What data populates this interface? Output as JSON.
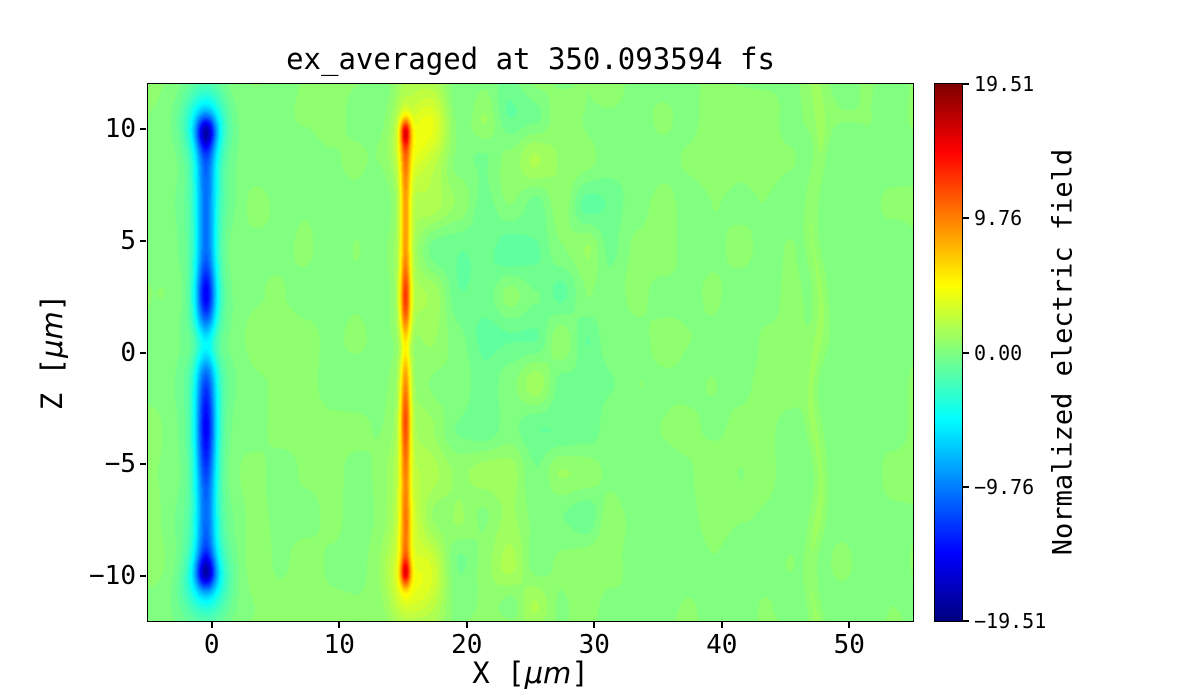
{
  "chart_data": {
    "type": "heatmap",
    "title": "ex_averaged at 350.093594 fs",
    "xlabel_parts": {
      "pre": "X [",
      "unit": "μm",
      "post": "]"
    },
    "ylabel_parts": {
      "pre": "Z [",
      "unit": "μm",
      "post": "]"
    },
    "xlim": [
      -5,
      55
    ],
    "ylim": [
      -12,
      12
    ],
    "xticks": [
      0,
      10,
      20,
      30,
      40,
      50
    ],
    "yticks": [
      -10,
      -5,
      0,
      5,
      10
    ],
    "colorbar": {
      "label": "Normalized electric field",
      "colormap": "jet",
      "vmin": -19.51,
      "vmax": 19.51,
      "ticks": [
        {
          "v": 19.51,
          "label": "19.51"
        },
        {
          "v": 9.76,
          "label": "9.76"
        },
        {
          "v": 0,
          "label": "0.00"
        },
        {
          "v": -9.76,
          "label": "−9.76"
        },
        {
          "v": -19.51,
          "label": "−19.51"
        }
      ]
    },
    "description": "2D field map: near-zero (green) background; a negative (cyan/blue) vertical sheet at x≈0 μm spanning z≈−10…10 μm with dark-blue lobes at z≈±10, ≈2.5 and ≈−3.5; a thin positive (yellow/orange) sheet at x≈15 μm spanning z≈−10…10 μm with red hot spots at z≈±10; mottled weak fluctuations for x≈15–33 μm and a faint vertical seam near x≈47 μm.",
    "field": {
      "background": 0.25,
      "levels": 64,
      "texture": {
        "global": 0.55,
        "region": {
          "x0": 13,
          "x1": 34,
          "amp": 2.0
        }
      },
      "band": {
        "x": 47.4,
        "amp": 0.9
      },
      "stripes": [
        {
          "xc": -0.45,
          "sx": 0.8,
          "amp": -8.5,
          "zmin": -10.4,
          "zmax": 10.4,
          "edge": 0.35,
          "bumps": [
            {
              "z": 10.0,
              "sz": 0.8,
              "amp": -7.0
            },
            {
              "z": -10.0,
              "sz": 0.8,
              "amp": -7.0
            },
            {
              "z": 2.6,
              "sz": 1.2,
              "amp": -4.5
            },
            {
              "z": -3.4,
              "sz": 2.0,
              "amp": -4.5
            }
          ],
          "gap": {
            "z": 0.3,
            "sz": 1.0,
            "factor": 0.5
          },
          "halo": {
            "sxl": 1.8,
            "sxr": 1.8,
            "amp": -2.2,
            "tip": 0.9
          }
        },
        {
          "xc": 15.2,
          "sx": 0.42,
          "amp": 7.0,
          "zmin": -10.3,
          "zmax": 10.3,
          "edge": 0.3,
          "bumps": [
            {
              "z": 10.0,
              "sz": 0.7,
              "amp": 8.5
            },
            {
              "z": -10.0,
              "sz": 0.7,
              "amp": 8.0
            },
            {
              "z": 2.5,
              "sz": 1.3,
              "amp": 4.0
            },
            {
              "z": -3.0,
              "sz": 1.8,
              "amp": 3.5
            }
          ],
          "gap": {
            "z": 0.2,
            "sz": 0.8,
            "factor": 0.35
          },
          "halo": {
            "sxl": 1.2,
            "sxr": 2.8,
            "amp": 1.6,
            "tip": 1.0
          }
        }
      ],
      "blobs": [
        {
          "x": 16.5,
          "z": 10,
          "sx": 2.2,
          "sz": 1.6,
          "amp": 1.8
        },
        {
          "x": 16.5,
          "z": -10,
          "sx": 2.2,
          "sz": 1.6,
          "amp": 1.8
        },
        {
          "x": -0.5,
          "z": 10.3,
          "sx": 1.6,
          "sz": 1.2,
          "amp": -2.5
        },
        {
          "x": -0.5,
          "z": -10.3,
          "sx": 1.6,
          "sz": 1.2,
          "amp": -2.5
        }
      ]
    }
  }
}
